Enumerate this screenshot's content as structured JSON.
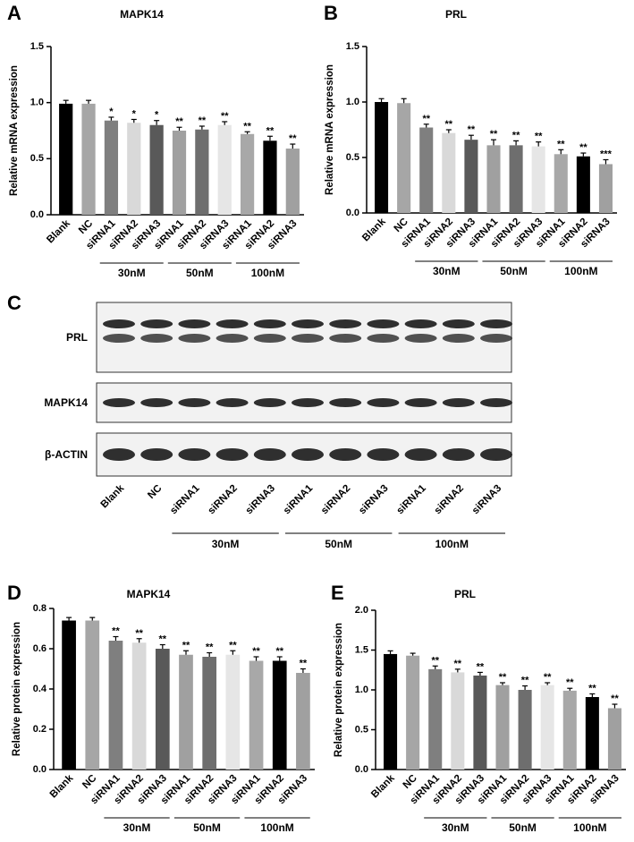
{
  "chart_data": [
    {
      "type": "bar",
      "panel": "A",
      "title": "MAPK14",
      "y_label": "Relative mRNA expression",
      "categories": [
        "Blank",
        "NC",
        "siRNA1",
        "siRNA2",
        "siRNA3",
        "siRNA1",
        "siRNA2",
        "siRNA3",
        "siRNA1",
        "siRNA2",
        "siRNA3"
      ],
      "values": [
        0.99,
        0.99,
        0.84,
        0.82,
        0.8,
        0.75,
        0.76,
        0.8,
        0.72,
        0.66,
        0.59
      ],
      "errors": [
        0.03,
        0.03,
        0.03,
        0.03,
        0.04,
        0.03,
        0.03,
        0.03,
        0.02,
        0.04,
        0.04
      ],
      "annotations": [
        null,
        null,
        "*",
        "*",
        "*",
        "**",
        "**",
        "**",
        "**",
        "**",
        "**"
      ],
      "colors": [
        "#000000",
        "#a6a6a6",
        "#7f7f7f",
        "#d9d9d9",
        "#595959",
        "#a0a0a0",
        "#6e6e6e",
        "#e6e6e6",
        "#a8a8a8",
        "#000000",
        "#a0a0a0"
      ],
      "groups": [
        {
          "label": "30nM",
          "members": [
            2,
            3,
            4
          ]
        },
        {
          "label": "50nM",
          "members": [
            5,
            6,
            7
          ]
        },
        {
          "label": "100nM",
          "members": [
            8,
            9,
            10
          ]
        }
      ],
      "ylim": [
        0,
        1.5
      ],
      "yticks": [
        {
          "value": 0,
          "label": "0.0"
        },
        {
          "value": 0.5,
          "label": "0.5"
        },
        {
          "value": 1,
          "label": "1.0"
        },
        {
          "value": 1.5,
          "label": "1.5"
        }
      ]
    },
    {
      "type": "bar",
      "panel": "B",
      "title": "PRL",
      "y_label": "Relative mRNA expression",
      "categories": [
        "Blank",
        "NC",
        "siRNA1",
        "siRNA2",
        "siRNA3",
        "siRNA1",
        "siRNA2",
        "siRNA3",
        "siRNA1",
        "siRNA2",
        "siRNA3"
      ],
      "values": [
        1.0,
        0.99,
        0.77,
        0.72,
        0.66,
        0.61,
        0.61,
        0.6,
        0.53,
        0.51,
        0.44
      ],
      "errors": [
        0.03,
        0.04,
        0.03,
        0.03,
        0.04,
        0.05,
        0.04,
        0.04,
        0.04,
        0.03,
        0.04
      ],
      "annotations": [
        null,
        null,
        "**",
        "**",
        "**",
        "**",
        "**",
        "**",
        "**",
        "**",
        "***"
      ],
      "colors": [
        "#000000",
        "#a6a6a6",
        "#7f7f7f",
        "#d9d9d9",
        "#595959",
        "#a0a0a0",
        "#6e6e6e",
        "#e6e6e6",
        "#a8a8a8",
        "#000000",
        "#a0a0a0"
      ],
      "groups": [
        {
          "label": "30nM",
          "members": [
            2,
            3,
            4
          ]
        },
        {
          "label": "50nM",
          "members": [
            5,
            6,
            7
          ]
        },
        {
          "label": "100nM",
          "members": [
            8,
            9,
            10
          ]
        }
      ],
      "ylim": [
        0,
        1.5
      ],
      "yticks": [
        {
          "value": 0,
          "label": "0.0"
        },
        {
          "value": 0.5,
          "label": "0.5"
        },
        {
          "value": 1,
          "label": "1.0"
        },
        {
          "value": 1.5,
          "label": "1.5"
        }
      ]
    },
    {
      "type": "bar",
      "panel": "D",
      "title": "MAPK14",
      "y_label": "Relative protein expression",
      "categories": [
        "Blank",
        "NC",
        "siRNA1",
        "siRNA2",
        "siRNA3",
        "siRNA1",
        "siRNA2",
        "siRNA3",
        "siRNA1",
        "siRNA2",
        "siRNA3"
      ],
      "values": [
        0.74,
        0.74,
        0.64,
        0.63,
        0.6,
        0.57,
        0.56,
        0.57,
        0.54,
        0.54,
        0.48
      ],
      "errors": [
        0.015,
        0.015,
        0.02,
        0.02,
        0.02,
        0.02,
        0.02,
        0.02,
        0.02,
        0.02,
        0.02
      ],
      "annotations": [
        null,
        null,
        "**",
        "**",
        "**",
        "**",
        "**",
        "**",
        "**",
        "**",
        "**"
      ],
      "colors": [
        "#000000",
        "#a6a6a6",
        "#7f7f7f",
        "#d9d9d9",
        "#595959",
        "#a0a0a0",
        "#6e6e6e",
        "#e6e6e6",
        "#a8a8a8",
        "#000000",
        "#a0a0a0"
      ],
      "groups": [
        {
          "label": "30nM",
          "members": [
            2,
            3,
            4
          ]
        },
        {
          "label": "50nM",
          "members": [
            5,
            6,
            7
          ]
        },
        {
          "label": "100nM",
          "members": [
            8,
            9,
            10
          ]
        }
      ],
      "ylim": [
        0,
        0.8
      ],
      "yticks": [
        {
          "value": 0,
          "label": "0.0"
        },
        {
          "value": 0.2,
          "label": "0.2"
        },
        {
          "value": 0.4,
          "label": "0.4"
        },
        {
          "value": 0.6,
          "label": "0.6"
        },
        {
          "value": 0.8,
          "label": "0.8"
        }
      ]
    },
    {
      "type": "bar",
      "panel": "E",
      "title": "PRL",
      "y_label": "Relative protein expression",
      "categories": [
        "Blank",
        "NC",
        "siRNA1",
        "siRNA2",
        "siRNA3",
        "siRNA1",
        "siRNA2",
        "siRNA3",
        "siRNA1",
        "siRNA2",
        "siRNA3"
      ],
      "values": [
        1.45,
        1.43,
        1.26,
        1.22,
        1.18,
        1.06,
        1.0,
        1.06,
        0.99,
        0.91,
        0.77
      ],
      "errors": [
        0.04,
        0.03,
        0.04,
        0.04,
        0.04,
        0.03,
        0.05,
        0.03,
        0.03,
        0.04,
        0.05
      ],
      "annotations": [
        null,
        null,
        "**",
        "**",
        "**",
        "**",
        "**",
        "**",
        "**",
        "**",
        "**"
      ],
      "colors": [
        "#000000",
        "#a6a6a6",
        "#7f7f7f",
        "#d9d9d9",
        "#595959",
        "#a0a0a0",
        "#6e6e6e",
        "#e6e6e6",
        "#a8a8a8",
        "#000000",
        "#a0a0a0"
      ],
      "groups": [
        {
          "label": "30nM",
          "members": [
            2,
            3,
            4
          ]
        },
        {
          "label": "50nM",
          "members": [
            5,
            6,
            7
          ]
        },
        {
          "label": "100nM",
          "members": [
            8,
            9,
            10
          ]
        }
      ],
      "ylim": [
        0,
        2
      ],
      "yticks": [
        {
          "value": 0,
          "label": "0.0"
        },
        {
          "value": 0.5,
          "label": "0.5"
        },
        {
          "value": 1,
          "label": "1.0"
        },
        {
          "value": 1.5,
          "label": "1.5"
        },
        {
          "value": 2,
          "label": "2.0"
        }
      ]
    }
  ],
  "blot": {
    "panel": "C",
    "rows": [
      "PRL",
      "MAPK14",
      "β-ACTIN"
    ],
    "lanes": [
      "Blank",
      "NC",
      "siRNA1",
      "siRNA2",
      "siRNA3",
      "siRNA1",
      "siRNA2",
      "siRNA3",
      "siRNA1",
      "siRNA2",
      "siRNA3"
    ],
    "groups": [
      {
        "label": "30nM",
        "members": [
          2,
          3,
          4
        ]
      },
      {
        "label": "50nM",
        "members": [
          5,
          6,
          7
        ]
      },
      {
        "label": "100nM",
        "members": [
          8,
          9,
          10
        ]
      }
    ]
  }
}
